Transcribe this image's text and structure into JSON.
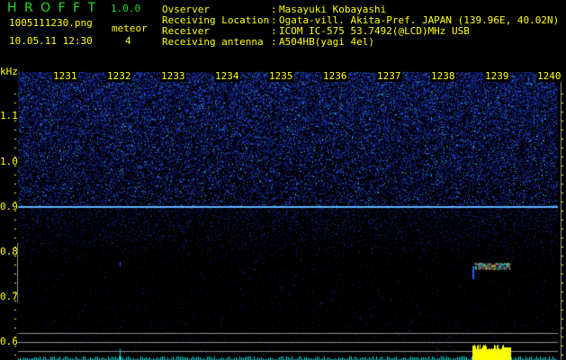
{
  "app": {
    "name": "H R O F F T",
    "version": "1.0.0"
  },
  "file": {
    "name": "1005111230.png",
    "datetime": "10.05.11 12:30"
  },
  "meteor": {
    "label": "meteor",
    "count": "4"
  },
  "info": [
    {
      "label": "Ovserver",
      "value": "Masayuki Kobayashi"
    },
    {
      "label": "Receiving Location",
      "value": "Ogata-vill. Akita-Pref. JAPAN (139.96E, 40.02N)"
    },
    {
      "label": "Receiver",
      "value": "ICOM IC-575 53.7492(@LCD)MHz USB"
    },
    {
      "label": "Receiving antenna",
      "value": "A504HB(yagi 4el)"
    }
  ],
  "spectrogram": {
    "unit": "kHz",
    "y_ticks": [
      "1.1",
      "1.0",
      "0.9",
      "0.8",
      "0.7",
      "0.6"
    ],
    "x_ticks": [
      "1231",
      "1232",
      "1233",
      "1234",
      "1235",
      "1236",
      "1237",
      "1238",
      "1239",
      "1240"
    ],
    "colors": {
      "text": "#ffff00",
      "logo": "#22dd22",
      "noise": "#1a2aa0",
      "signal_line": "#6cc8ff",
      "histogram": "#00e0e0",
      "meteor_bar": "#ffff00"
    }
  }
}
